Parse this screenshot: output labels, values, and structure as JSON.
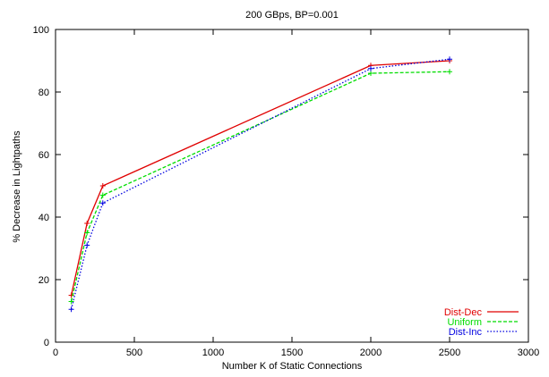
{
  "chart_data": {
    "type": "line",
    "title": "200 GBps, BP=0.001",
    "xlabel": "Number K of Static Connections",
    "ylabel": "% Decrease in Lightpaths",
    "xlim": [
      0,
      3000
    ],
    "ylim": [
      0,
      100
    ],
    "xticks": [
      0,
      500,
      1000,
      1500,
      2000,
      2500,
      3000
    ],
    "yticks": [
      0,
      20,
      40,
      60,
      80,
      100
    ],
    "grid": false,
    "legend_position": "bottom-right",
    "series": [
      {
        "name": "Dist-Dec",
        "color": "#e00000",
        "dash": "solid",
        "points": [
          [
            100,
            15
          ],
          [
            200,
            38
          ],
          [
            300,
            50
          ],
          [
            2000,
            88.5
          ],
          [
            2500,
            90
          ]
        ]
      },
      {
        "name": "Uniform",
        "color": "#00dd00",
        "dash": "dashed",
        "points": [
          [
            100,
            13
          ],
          [
            200,
            35
          ],
          [
            300,
            47
          ],
          [
            2000,
            86
          ],
          [
            2500,
            86.5
          ]
        ]
      },
      {
        "name": "Dist-Inc",
        "color": "#0000e0",
        "dash": "dotted",
        "points": [
          [
            100,
            10.5
          ],
          [
            200,
            31
          ],
          [
            300,
            44.5
          ],
          [
            2000,
            87.5
          ],
          [
            2500,
            90.5
          ]
        ]
      }
    ]
  }
}
